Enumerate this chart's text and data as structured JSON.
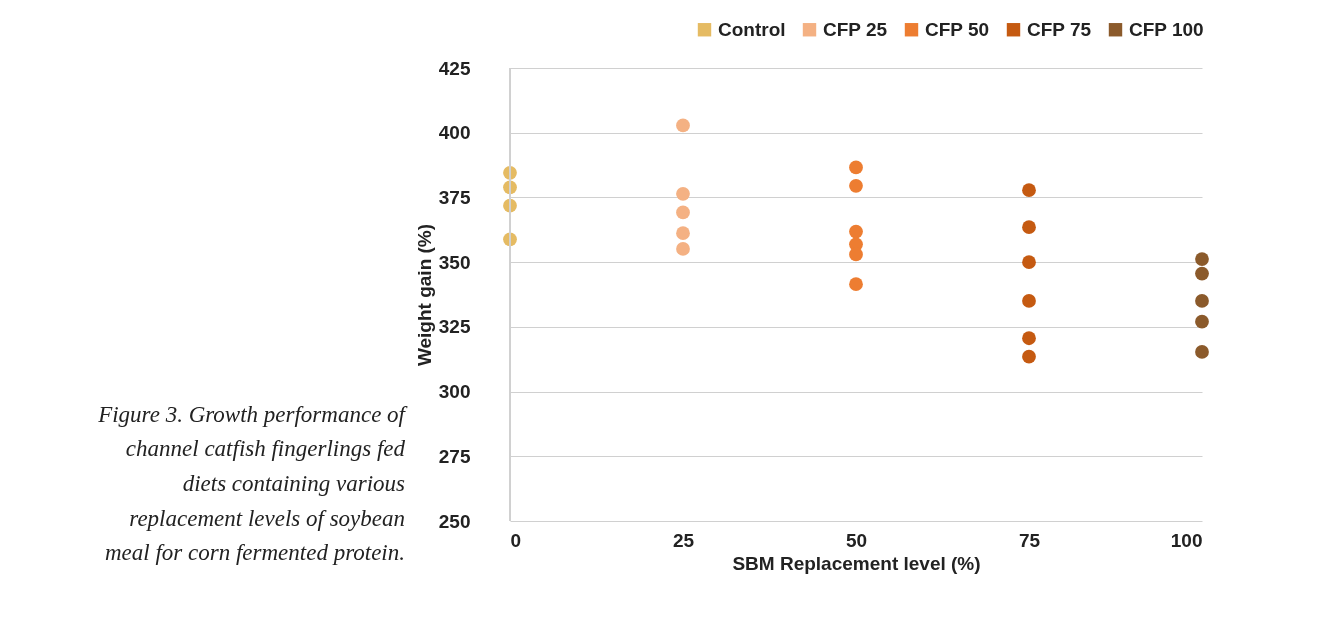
{
  "chart_data": {
    "type": "scatter",
    "xlabel": "SBM Replacement level (%)",
    "ylabel": "Weight gain (%)",
    "xlim": [
      0,
      100
    ],
    "xticks": [
      0,
      25,
      50,
      75,
      100
    ],
    "ylim": [
      250,
      425
    ],
    "yticks": [
      250,
      275,
      300,
      325,
      350,
      375,
      400,
      425
    ],
    "grid": "y",
    "legend": "top",
    "marker": "circle",
    "annotations": [
      "Figure 3. Growth performance of channel catfish fingerlings fed diets containing various replacement levels of soybean meal for corn fermented protein."
    ],
    "series": [
      {
        "name": "Control",
        "color": "#e5bb63",
        "x": [
          0,
          0,
          0,
          0
        ],
        "values": [
          384.5,
          378.9,
          371.8,
          358.8
        ]
      },
      {
        "name": "CFP 25",
        "color": "#f4b183",
        "x": [
          25,
          25,
          25,
          25,
          25
        ],
        "values": [
          402.8,
          376.4,
          369.2,
          361.2,
          355.1
        ]
      },
      {
        "name": "CFP 50",
        "color": "#ed7d31",
        "x": [
          50,
          50,
          50,
          50,
          50,
          50
        ],
        "values": [
          386.6,
          379.5,
          361.8,
          356.9,
          353.0,
          341.5
        ]
      },
      {
        "name": "CFP 75",
        "color": "#c55a11",
        "x": [
          75,
          75,
          75,
          75,
          75,
          75
        ],
        "values": [
          377.8,
          363.5,
          350.0,
          335.0,
          320.6,
          313.5
        ]
      },
      {
        "name": "CFP 100",
        "color": "#8b5a2b",
        "x": [
          100,
          100,
          100,
          100,
          100
        ],
        "values": [
          351.2,
          345.6,
          335.0,
          327.0,
          315.3
        ]
      }
    ]
  }
}
